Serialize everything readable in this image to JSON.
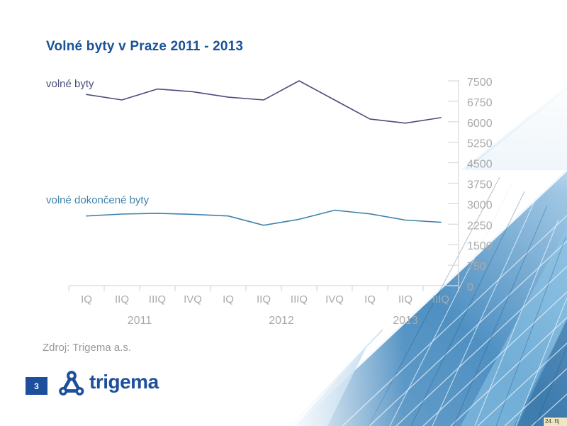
{
  "slide": {
    "title": "Volné byty v Praze 2011 - 2013",
    "source_note": "Zdroj: Trigema a.s.",
    "page_number": "3",
    "logo_text": "trigema",
    "corner_note": "24. říj"
  },
  "colors": {
    "title": "#1a5296",
    "brand": "#1d4f9c",
    "series1": "#4a4d7c",
    "series2": "#3e82ab",
    "axis_line": "#d9d9d9",
    "tick_label": "#a9a9a9",
    "source_text": "#9a9a9a"
  },
  "chart_data": {
    "type": "line",
    "title": "Volné byty v Praze 2011 - 2013",
    "categories": [
      "IQ",
      "IIQ",
      "IIIQ",
      "IVQ",
      "IQ",
      "IIQ",
      "IIIQ",
      "IVQ",
      "IQ",
      "IIQ",
      "IIIQ"
    ],
    "year_groups": [
      {
        "label": "2011",
        "start": 0,
        "end": 3
      },
      {
        "label": "2012",
        "start": 4,
        "end": 7
      },
      {
        "label": "2013",
        "start": 8,
        "end": 10
      }
    ],
    "series": [
      {
        "name": "volné byty",
        "color": "#4a4d7c",
        "values": [
          7000,
          6800,
          7200,
          7100,
          6900,
          6800,
          7500,
          6800,
          6100,
          5950,
          6150
        ]
      },
      {
        "name": "volné dokončené byty",
        "color": "#3e82ab",
        "values": [
          2550,
          2620,
          2650,
          2610,
          2550,
          2210,
          2430,
          2760,
          2630,
          2400,
          2320
        ]
      }
    ],
    "ylim": [
      0,
      7500
    ],
    "ytick_step": 750,
    "yticks_side": "right",
    "grid": false,
    "legend_position": "inline labels left of each line"
  }
}
